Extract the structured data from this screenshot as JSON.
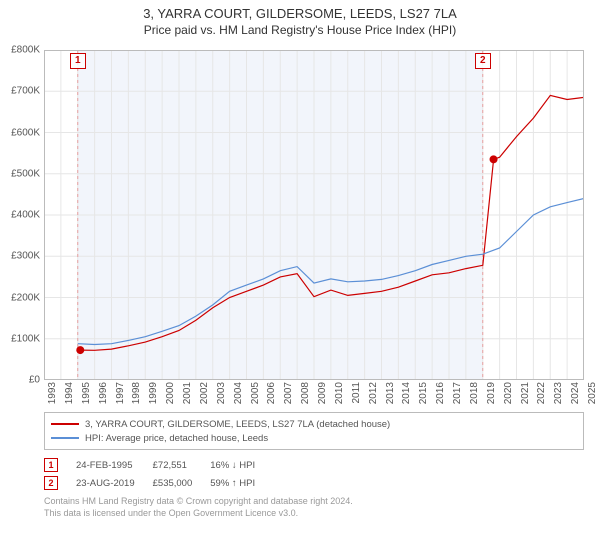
{
  "title": "3, YARRA COURT, GILDERSOME, LEEDS, LS27 7LA",
  "subtitle": "Price paid vs. HM Land Registry's House Price Index (HPI)",
  "chart": {
    "type": "line",
    "background_color": "#ffffff",
    "grid_color": "#e6e6e6",
    "xlim": [
      1993,
      2025
    ],
    "ylim": [
      0,
      800000
    ],
    "ytick_step": 100000,
    "ytick_labels": [
      "£0",
      "£100K",
      "£200K",
      "£300K",
      "£400K",
      "£500K",
      "£600K",
      "£700K",
      "£800K"
    ],
    "xtick_step": 1,
    "xtick_labels": [
      "1993",
      "1994",
      "1995",
      "1996",
      "1997",
      "1998",
      "1999",
      "2000",
      "2001",
      "2002",
      "2003",
      "2004",
      "2005",
      "2006",
      "2007",
      "2008",
      "2009",
      "2010",
      "2011",
      "2012",
      "2013",
      "2014",
      "2015",
      "2016",
      "2017",
      "2018",
      "2019",
      "2020",
      "2021",
      "2022",
      "2023",
      "2024",
      "2025"
    ],
    "vertical_indicator_years": [
      1995,
      2019
    ],
    "vertical_indicator_color": "#e6a0a0",
    "marker_box_color": "#cc0000",
    "series": [
      {
        "name": "3, YARRA COURT, GILDERSOME, LEEDS, LS27 7LA (detached house)",
        "color": "#cc0000",
        "width": 1.2,
        "data": [
          [
            1995.15,
            72551
          ],
          [
            1996,
            72000
          ],
          [
            1997,
            75000
          ],
          [
            1998,
            83000
          ],
          [
            1999,
            92000
          ],
          [
            2000,
            105000
          ],
          [
            2001,
            120000
          ],
          [
            2002,
            145000
          ],
          [
            2003,
            175000
          ],
          [
            2004,
            200000
          ],
          [
            2005,
            215000
          ],
          [
            2006,
            230000
          ],
          [
            2007,
            250000
          ],
          [
            2008,
            258000
          ],
          [
            2009,
            202000
          ],
          [
            2010,
            218000
          ],
          [
            2011,
            205000
          ],
          [
            2012,
            210000
          ],
          [
            2013,
            215000
          ],
          [
            2014,
            225000
          ],
          [
            2015,
            240000
          ],
          [
            2016,
            255000
          ],
          [
            2017,
            260000
          ],
          [
            2018,
            270000
          ],
          [
            2019,
            278000
          ],
          [
            2019.64,
            535000
          ],
          [
            2020,
            540000
          ],
          [
            2021,
            590000
          ],
          [
            2022,
            635000
          ],
          [
            2023,
            690000
          ],
          [
            2024,
            680000
          ],
          [
            2025,
            685000
          ]
        ],
        "sale_points": [
          {
            "x": 1995.15,
            "y": 72551
          },
          {
            "x": 2019.64,
            "y": 535000
          }
        ]
      },
      {
        "name": "HPI: Average price, detached house, Leeds",
        "color": "#5b8fd6",
        "width": 1.2,
        "data": [
          [
            1995,
            88000
          ],
          [
            1996,
            86000
          ],
          [
            1997,
            88000
          ],
          [
            1998,
            96000
          ],
          [
            1999,
            105000
          ],
          [
            2000,
            118000
          ],
          [
            2001,
            132000
          ],
          [
            2002,
            155000
          ],
          [
            2003,
            182000
          ],
          [
            2004,
            215000
          ],
          [
            2005,
            230000
          ],
          [
            2006,
            245000
          ],
          [
            2007,
            265000
          ],
          [
            2008,
            275000
          ],
          [
            2009,
            235000
          ],
          [
            2010,
            245000
          ],
          [
            2011,
            238000
          ],
          [
            2012,
            240000
          ],
          [
            2013,
            244000
          ],
          [
            2014,
            253000
          ],
          [
            2015,
            265000
          ],
          [
            2016,
            280000
          ],
          [
            2017,
            290000
          ],
          [
            2018,
            300000
          ],
          [
            2019,
            305000
          ],
          [
            2020,
            320000
          ],
          [
            2021,
            360000
          ],
          [
            2022,
            400000
          ],
          [
            2023,
            420000
          ],
          [
            2024,
            430000
          ],
          [
            2025,
            440000
          ]
        ]
      }
    ]
  },
  "legend": {
    "series": [
      {
        "color": "#cc0000",
        "label": "3, YARRA COURT, GILDERSOME, LEEDS, LS27 7LA (detached house)"
      },
      {
        "color": "#5b8fd6",
        "label": "HPI: Average price, detached house, Leeds"
      }
    ]
  },
  "markers": [
    {
      "num": "1",
      "date": "24-FEB-1995",
      "price": "£72,551",
      "delta": "16% ↓ HPI",
      "color": "#cc0000"
    },
    {
      "num": "2",
      "date": "23-AUG-2019",
      "price": "£535,000",
      "delta": "59% ↑ HPI",
      "color": "#cc0000"
    }
  ],
  "license_line1": "Contains HM Land Registry data © Crown copyright and database right 2024.",
  "license_line2": "This data is licensed under the Open Government Licence v3.0."
}
